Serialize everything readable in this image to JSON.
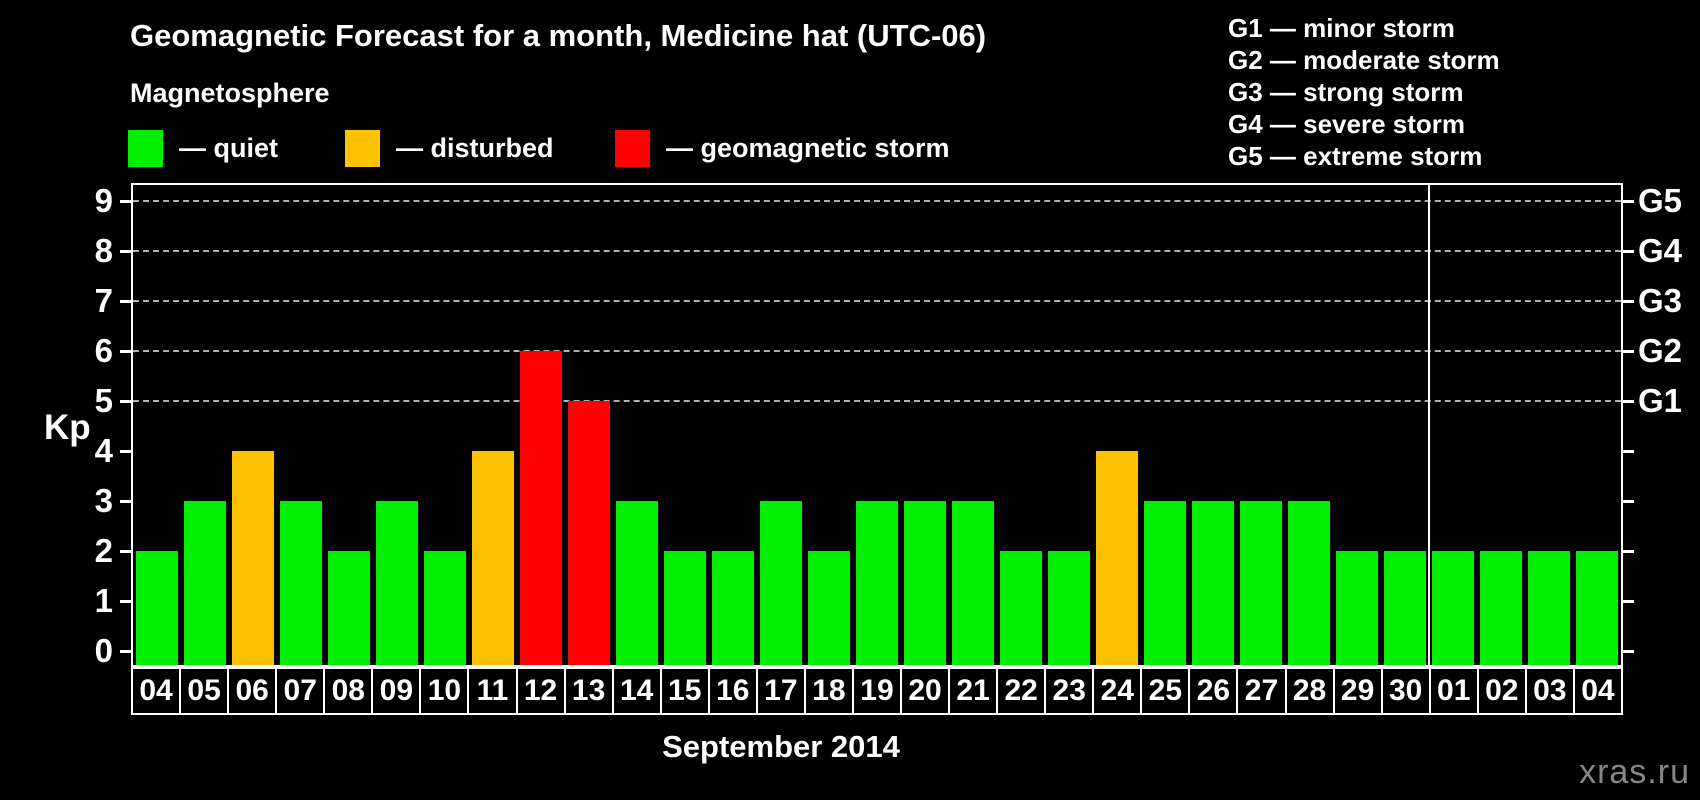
{
  "title": "Geomagnetic Forecast for a month, Medicine hat (UTC-06)",
  "legend": {
    "title": "Magnetosphere",
    "items": [
      {
        "name": "quiet",
        "label": "— quiet",
        "color": "#00ee00"
      },
      {
        "name": "disturbed",
        "label": "— disturbed",
        "color": "#ffc200"
      },
      {
        "name": "storm",
        "label": "— geomagnetic storm",
        "color": "#ff0000"
      }
    ]
  },
  "g_scale_legend": [
    "G1 — minor storm",
    "G2 — moderate storm",
    "G3 — strong storm",
    "G4 — severe storm",
    "G5 — extreme storm"
  ],
  "watermark": "xras.ru",
  "chart_data": {
    "type": "bar",
    "title": "Geomagnetic Forecast for a month, Medicine hat (UTC-06)",
    "xlabel": "September 2014",
    "ylabel": "Kp",
    "ylim": [
      0,
      9
    ],
    "yticks": [
      0,
      1,
      2,
      3,
      4,
      5,
      6,
      7,
      8,
      9
    ],
    "gridlines_at": [
      5,
      6,
      7,
      8,
      9
    ],
    "grid": "dashed",
    "legend_position": "top",
    "right_axis_labels": [
      {
        "label": "G1",
        "kp": 5
      },
      {
        "label": "G2",
        "kp": 6
      },
      {
        "label": "G3",
        "kp": 7
      },
      {
        "label": "G4",
        "kp": 8
      },
      {
        "label": "G5",
        "kp": 9
      }
    ],
    "categories": [
      "04",
      "05",
      "06",
      "07",
      "08",
      "09",
      "10",
      "11",
      "12",
      "13",
      "14",
      "15",
      "16",
      "17",
      "18",
      "19",
      "20",
      "21",
      "22",
      "23",
      "24",
      "25",
      "26",
      "27",
      "28",
      "29",
      "30",
      "01",
      "02",
      "03",
      "04"
    ],
    "values": [
      2,
      3,
      4,
      3,
      2,
      3,
      2,
      4,
      6,
      5,
      3,
      2,
      2,
      3,
      2,
      3,
      3,
      3,
      2,
      2,
      4,
      3,
      3,
      3,
      3,
      2,
      2,
      2,
      2,
      2,
      2
    ],
    "statuses": [
      "quiet",
      "quiet",
      "disturbed",
      "quiet",
      "quiet",
      "quiet",
      "quiet",
      "disturbed",
      "storm",
      "storm",
      "quiet",
      "quiet",
      "quiet",
      "quiet",
      "quiet",
      "quiet",
      "quiet",
      "quiet",
      "quiet",
      "quiet",
      "disturbed",
      "quiet",
      "quiet",
      "quiet",
      "quiet",
      "quiet",
      "quiet",
      "quiet",
      "quiet",
      "quiet",
      "quiet"
    ],
    "month_separator_after_index": 26,
    "colors": {
      "quiet": "#00ee00",
      "disturbed": "#ffc200",
      "storm": "#ff0000"
    }
  }
}
